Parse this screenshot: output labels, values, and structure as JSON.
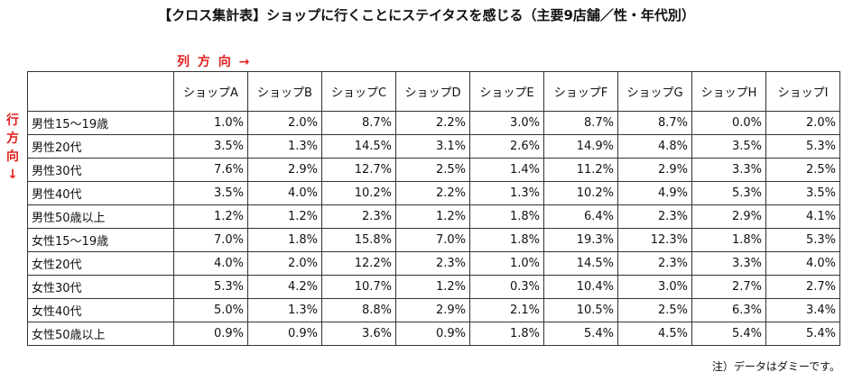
{
  "title": "【クロス集計表】ショップに行くことにステイタスを感じる（主要9店舗／性・年代別）",
  "column_direction_label": "列 方 向 →",
  "row_direction_label": [
    "行",
    "方",
    "向",
    "↓"
  ],
  "columns": [
    "ショップA",
    "ショップB",
    "ショップC",
    "ショップD",
    "ショップE",
    "ショップF",
    "ショップG",
    "ショップH",
    "ショップI"
  ],
  "rows": [
    {
      "label": "男性15～19歳",
      "values": [
        "1.0%",
        "2.0%",
        "8.7%",
        "2.2%",
        "3.0%",
        "8.7%",
        "8.7%",
        "0.0%",
        "2.0%"
      ]
    },
    {
      "label": "男性20代",
      "values": [
        "3.5%",
        "1.3%",
        "14.5%",
        "3.1%",
        "2.6%",
        "14.9%",
        "4.8%",
        "3.5%",
        "5.3%"
      ]
    },
    {
      "label": "男性30代",
      "values": [
        "7.6%",
        "2.9%",
        "12.7%",
        "2.5%",
        "1.4%",
        "11.2%",
        "2.9%",
        "3.3%",
        "2.5%"
      ]
    },
    {
      "label": "男性40代",
      "values": [
        "3.5%",
        "4.0%",
        "10.2%",
        "2.2%",
        "1.3%",
        "10.2%",
        "4.9%",
        "5.3%",
        "3.5%"
      ]
    },
    {
      "label": "男性50歳以上",
      "values": [
        "1.2%",
        "1.2%",
        "2.3%",
        "1.2%",
        "1.8%",
        "6.4%",
        "2.3%",
        "2.9%",
        "4.1%"
      ]
    },
    {
      "label": "女性15～19歳",
      "values": [
        "7.0%",
        "1.8%",
        "15.8%",
        "7.0%",
        "1.8%",
        "19.3%",
        "12.3%",
        "1.8%",
        "5.3%"
      ]
    },
    {
      "label": "女性20代",
      "values": [
        "4.0%",
        "2.0%",
        "12.2%",
        "2.3%",
        "1.0%",
        "14.5%",
        "2.3%",
        "3.3%",
        "4.0%"
      ]
    },
    {
      "label": "女性30代",
      "values": [
        "5.3%",
        "4.2%",
        "10.7%",
        "1.2%",
        "0.3%",
        "10.4%",
        "3.0%",
        "2.7%",
        "2.7%"
      ]
    },
    {
      "label": "女性40代",
      "values": [
        "5.0%",
        "1.3%",
        "8.8%",
        "2.9%",
        "2.1%",
        "10.5%",
        "2.5%",
        "6.3%",
        "3.4%"
      ]
    },
    {
      "label": "女性50歳以上",
      "values": [
        "0.9%",
        "0.9%",
        "3.6%",
        "0.9%",
        "1.8%",
        "5.4%",
        "4.5%",
        "5.4%",
        "5.4%"
      ]
    }
  ],
  "note": "注）データはダミーです。",
  "colors": {
    "direction_label": "#e0201e",
    "border": "#333333",
    "text": "#111111"
  }
}
